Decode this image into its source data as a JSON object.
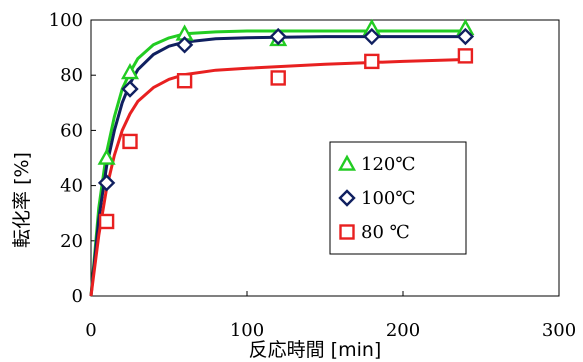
{
  "chart_data": {
    "type": "scatter",
    "title": "",
    "xlabel": "反応時間 [min]",
    "ylabel": "転化率 [%]",
    "xlim": [
      0,
      300
    ],
    "ylim": [
      0,
      100
    ],
    "xticks": [
      0,
      100,
      200,
      300
    ],
    "yticks": [
      0,
      20,
      40,
      60,
      80,
      100
    ],
    "grid": false,
    "legend_position": "right",
    "series": [
      {
        "name": "120℃",
        "marker": "triangle",
        "color": "#22cc22",
        "x": [
          10,
          25,
          60,
          120,
          180,
          240
        ],
        "y": [
          50,
          81,
          95,
          93,
          97,
          97
        ],
        "fit": [
          [
            0,
            0
          ],
          [
            5,
            32
          ],
          [
            10,
            52
          ],
          [
            15,
            65
          ],
          [
            20,
            75
          ],
          [
            25,
            81
          ],
          [
            30,
            86
          ],
          [
            40,
            91
          ],
          [
            50,
            93.5
          ],
          [
            60,
            95
          ],
          [
            80,
            95.7
          ],
          [
            100,
            96
          ],
          [
            150,
            96
          ],
          [
            200,
            96
          ],
          [
            240,
            96
          ]
        ]
      },
      {
        "name": "100℃",
        "marker": "diamond",
        "color": "#102060",
        "x": [
          10,
          25,
          60,
          120,
          180,
          240
        ],
        "y": [
          41,
          75,
          91,
          94,
          94,
          94
        ],
        "fit": [
          [
            0,
            0
          ],
          [
            5,
            28
          ],
          [
            10,
            47
          ],
          [
            15,
            60
          ],
          [
            20,
            70
          ],
          [
            25,
            77
          ],
          [
            30,
            82
          ],
          [
            40,
            87.5
          ],
          [
            50,
            90.5
          ],
          [
            60,
            92
          ],
          [
            80,
            93.2
          ],
          [
            100,
            93.6
          ],
          [
            150,
            94
          ],
          [
            200,
            94
          ],
          [
            240,
            94
          ]
        ]
      },
      {
        "name": "80 ℃",
        "marker": "square",
        "color": "#e82020",
        "x": [
          10,
          25,
          60,
          120,
          180,
          240
        ],
        "y": [
          27,
          56,
          78,
          79,
          85,
          87
        ],
        "fit": [
          [
            0,
            0
          ],
          [
            5,
            22
          ],
          [
            10,
            39
          ],
          [
            15,
            51
          ],
          [
            20,
            60
          ],
          [
            25,
            66
          ],
          [
            30,
            70.5
          ],
          [
            40,
            75.5
          ],
          [
            50,
            78.5
          ],
          [
            60,
            80.2
          ],
          [
            80,
            81.8
          ],
          [
            100,
            82.5
          ],
          [
            150,
            84
          ],
          [
            200,
            85
          ],
          [
            240,
            85.7
          ]
        ]
      }
    ]
  }
}
